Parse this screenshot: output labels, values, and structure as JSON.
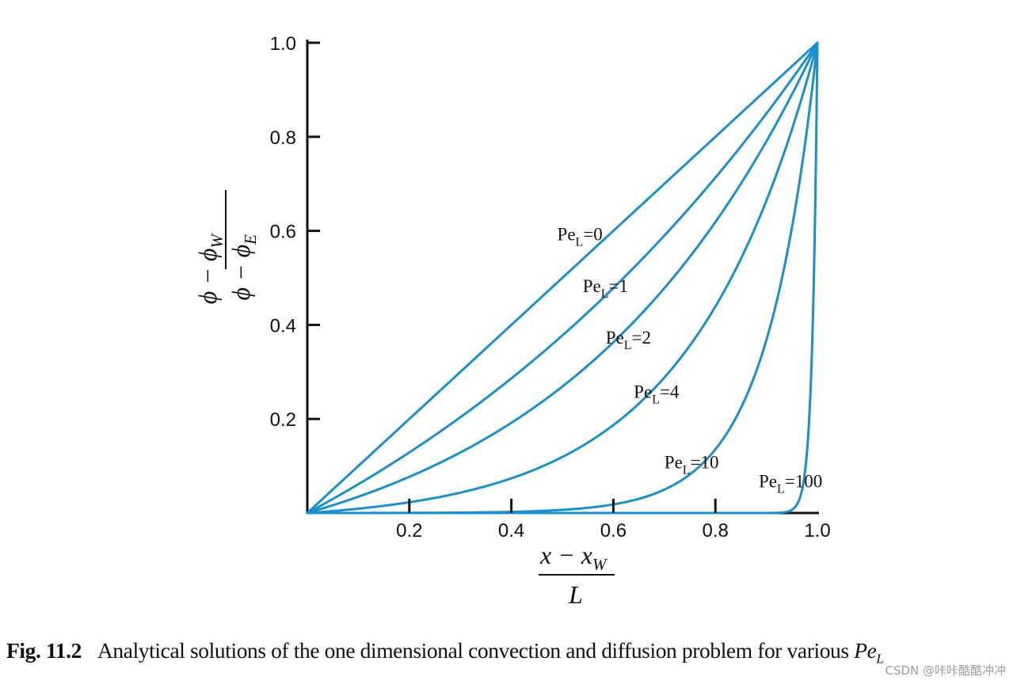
{
  "chart_data": {
    "type": "line",
    "color": "#1a8fc9",
    "xlabel": {
      "num_main": "x − x",
      "num_sub": "W",
      "den": "L"
    },
    "ylabel": {
      "num_main": "ϕ − ϕ",
      "num_sub": "W",
      "den_main": "ϕ − ϕ",
      "den_sub": "E"
    },
    "xlim": [
      0,
      1.0
    ],
    "ylim": [
      0,
      1.0
    ],
    "x_ticks": [
      0.2,
      0.4,
      0.6,
      0.8,
      1.0
    ],
    "x_tick_labels": [
      "0.2",
      "0.4",
      "0.6",
      "0.8",
      "1.0"
    ],
    "y_ticks": [
      0.2,
      0.4,
      0.6,
      0.8,
      1.0
    ],
    "y_tick_labels": [
      "0.2",
      "0.4",
      "0.6",
      "0.8",
      "1.0"
    ],
    "series": [
      {
        "name": "PeL=0",
        "pe": 0,
        "label_base": "Pe",
        "label_sub": "L",
        "label_tail": "=0",
        "label_pos": [
          0.49,
          0.58
        ]
      },
      {
        "name": "PeL=1",
        "pe": 1,
        "label_base": "Pe",
        "label_sub": "L",
        "label_tail": "=1",
        "label_pos": [
          0.54,
          0.47
        ]
      },
      {
        "name": "PeL=2",
        "pe": 2,
        "label_base": "Pe",
        "label_sub": "L",
        "label_tail": "=2",
        "label_pos": [
          0.585,
          0.36
        ]
      },
      {
        "name": "PeL=4",
        "pe": 4,
        "label_base": "Pe",
        "label_sub": "L",
        "label_tail": "=4",
        "label_pos": [
          0.64,
          0.245
        ]
      },
      {
        "name": "PeL=10",
        "pe": 10,
        "label_base": "Pe",
        "label_sub": "L",
        "label_tail": "=10",
        "label_pos": [
          0.7,
          0.095
        ]
      },
      {
        "name": "PeL=100",
        "pe": 100,
        "label_base": "Pe",
        "label_sub": "L",
        "label_tail": "=100",
        "label_pos": [
          0.885,
          0.055
        ]
      }
    ]
  },
  "caption": {
    "fig": "Fig. 11.2",
    "text": "Analytical solutions of the one dimensional convection and diffusion problem for various ",
    "sym": "Pe",
    "sym_sub": "L"
  },
  "watermark": "CSDN @咔咔酷酷冲冲"
}
